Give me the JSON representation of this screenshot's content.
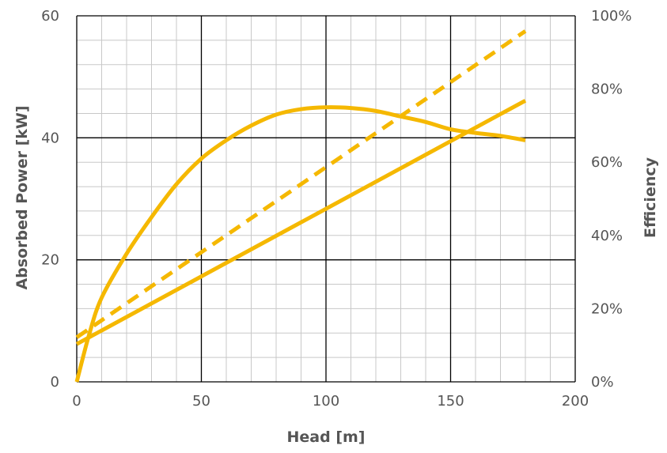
{
  "chart_data": {
    "type": "line",
    "title": "",
    "xlabel": "Head [m]",
    "ylabel": "Absorbed Power [kW]",
    "y2label": "Efficiency",
    "xlim": [
      0,
      200
    ],
    "ylim": [
      0,
      60
    ],
    "y2lim": [
      0,
      1
    ],
    "x_ticks": [
      "0",
      "50",
      "100",
      "150",
      "200"
    ],
    "y_ticks": [
      "0",
      "20",
      "40",
      "60"
    ],
    "y2_ticks": [
      "0%",
      "20%",
      "40%",
      "60%",
      "80%",
      "100%"
    ],
    "grid": true,
    "legend": "none",
    "series_color": "#F5B800",
    "series": [
      {
        "axis": "left",
        "style": "solid",
        "x": [
          0,
          180
        ],
        "y": [
          6.2,
          46.1
        ]
      },
      {
        "axis": "left",
        "style": "dashed",
        "x": [
          0,
          180
        ],
        "y": [
          7.3,
          57.5
        ]
      },
      {
        "axis": "right",
        "style": "solid",
        "x": [
          0,
          5,
          10,
          20,
          30,
          40,
          50,
          60,
          70,
          80,
          90,
          100,
          110,
          120,
          130,
          140,
          150,
          160,
          170,
          180
        ],
        "y": [
          0.0,
          0.13,
          0.23,
          0.35,
          0.45,
          0.54,
          0.61,
          0.66,
          0.7,
          0.73,
          0.745,
          0.75,
          0.748,
          0.74,
          0.725,
          0.71,
          0.69,
          0.68,
          0.672,
          0.66
        ]
      }
    ]
  }
}
